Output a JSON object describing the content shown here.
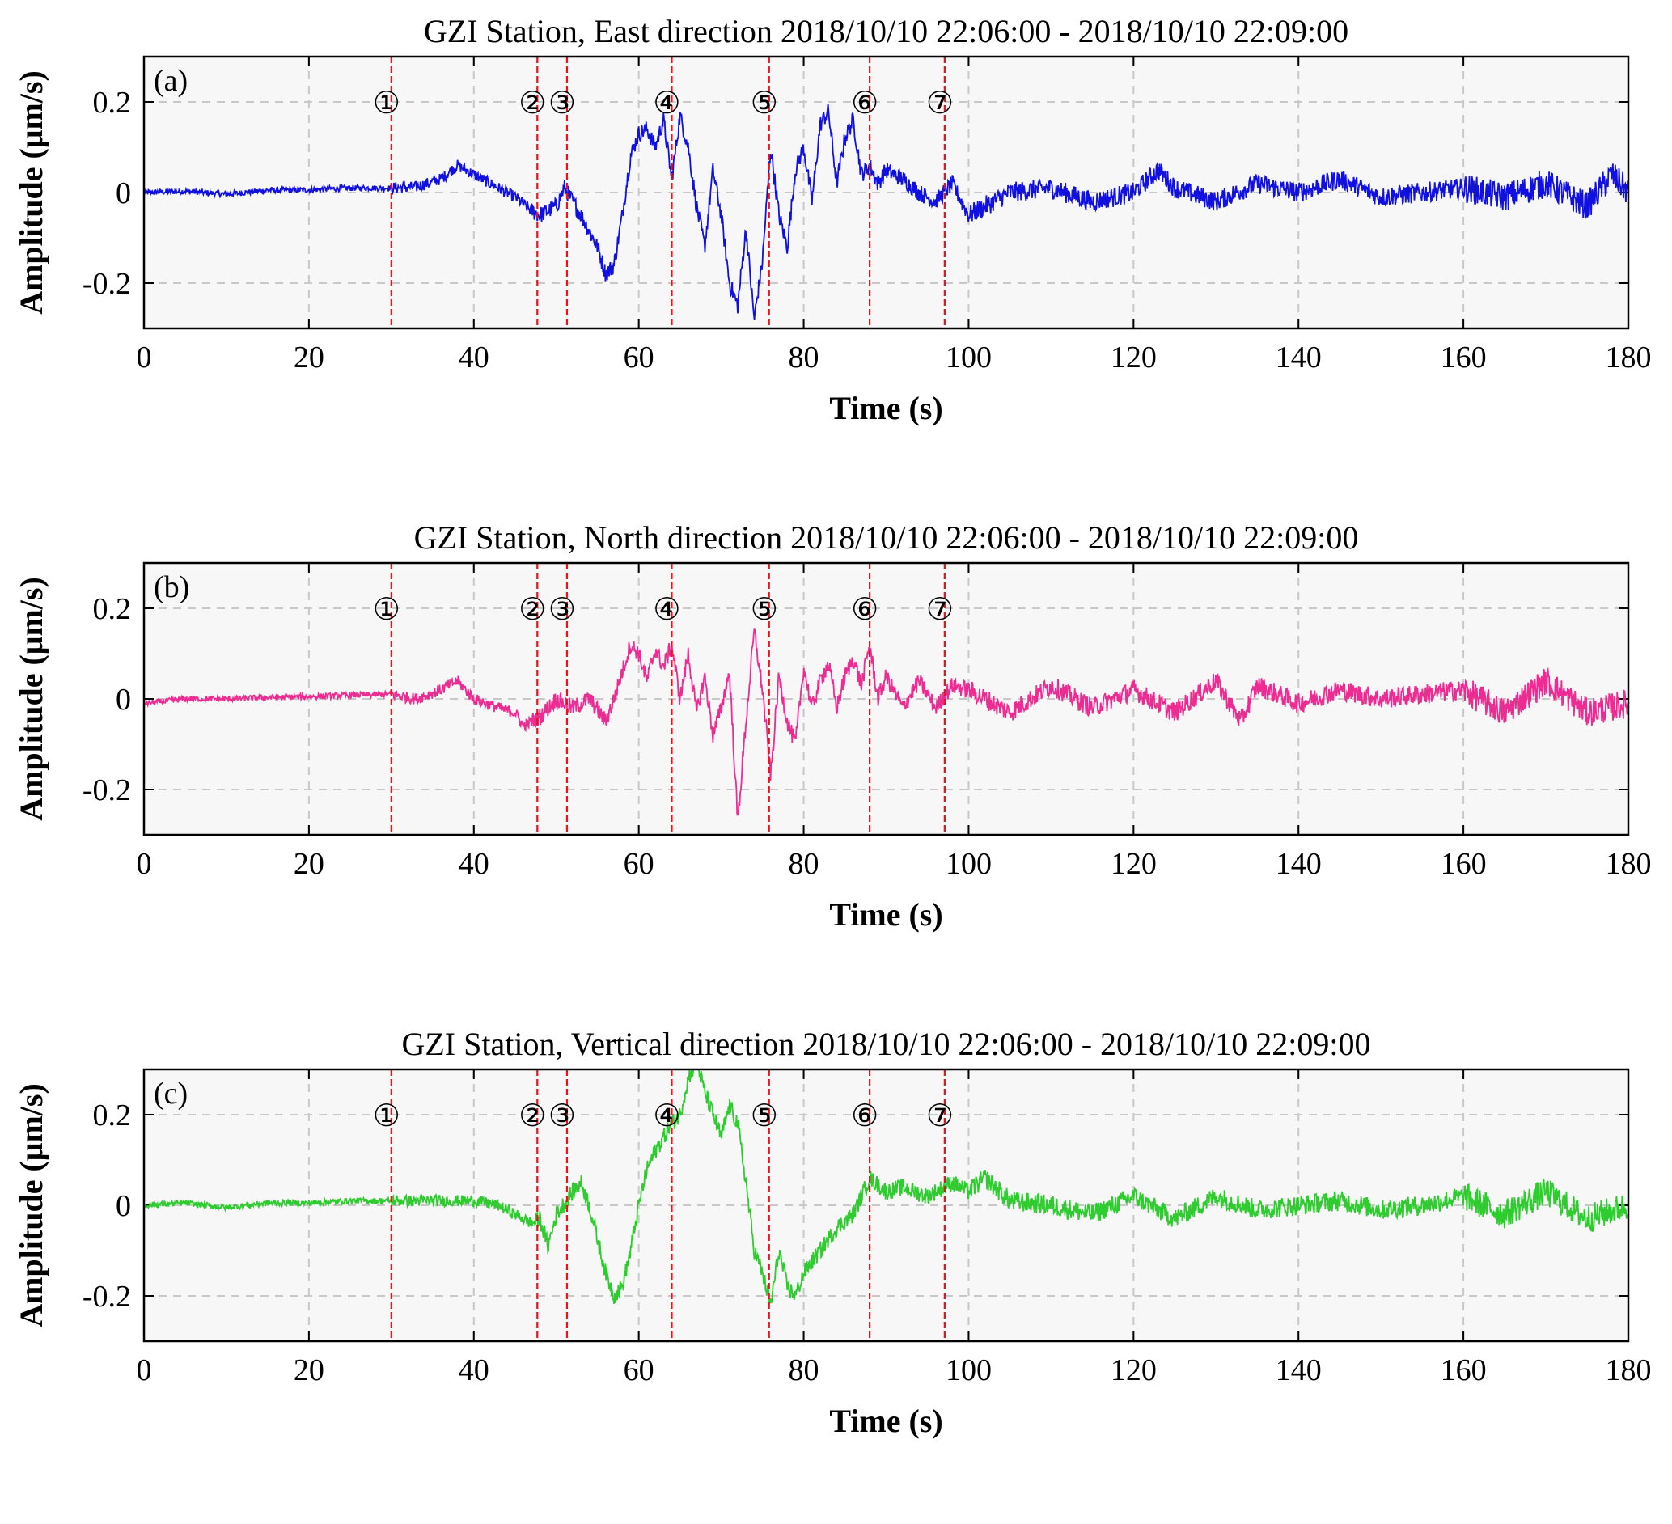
{
  "figure": {
    "colors": {
      "background": "#f7f7f7",
      "grid": "#c8c8c8",
      "event_line": "#e8131b"
    }
  },
  "chart_data": [
    {
      "type": "line",
      "panel_label": "(a)",
      "title": "GZI Station, East direction  2018/10/10 22:06:00 - 2018/10/10 22:09:00",
      "xlabel": "Time (s)",
      "ylabel": "Amplitude (μm/s)",
      "xlim": [
        0,
        180
      ],
      "ylim": [
        -0.3,
        0.3
      ],
      "x_ticks": [
        "0",
        "20",
        "40",
        "60",
        "80",
        "100",
        "120",
        "140",
        "160",
        "180"
      ],
      "y_ticks": [
        "-0.2",
        "0",
        "0.2"
      ],
      "grid": true,
      "color": "#1010e0",
      "series": [
        {
          "x": [
            0,
            5,
            10,
            15,
            20,
            25,
            30,
            33,
            36,
            38,
            40,
            43,
            45,
            47,
            48,
            50,
            51,
            53,
            55,
            56,
            57,
            58,
            59,
            60,
            61,
            62,
            63,
            64,
            65,
            66,
            67,
            68,
            69,
            70,
            71,
            72,
            73,
            74,
            75,
            76,
            77,
            78,
            79,
            80,
            81,
            82,
            83,
            84,
            85,
            86,
            87,
            88,
            89,
            90,
            92,
            94,
            96,
            98,
            100,
            105,
            110,
            115,
            120,
            123,
            125,
            130,
            135,
            140,
            145,
            150,
            155,
            160,
            165,
            170,
            175,
            178,
            180
          ],
          "y": [
            0,
            0.003,
            -0.004,
            0.005,
            0.006,
            0.01,
            0.01,
            0.012,
            0.03,
            0.06,
            0.04,
            0.01,
            -0.01,
            -0.04,
            -0.05,
            -0.03,
            0.01,
            -0.05,
            -0.12,
            -0.18,
            -0.16,
            -0.05,
            0.08,
            0.13,
            0.14,
            0.1,
            0.16,
            0.03,
            0.17,
            0.1,
            -0.03,
            -0.12,
            0.05,
            -0.05,
            -0.2,
            -0.25,
            -0.08,
            -0.28,
            -0.15,
            0.1,
            -0.05,
            -0.12,
            0.05,
            0.1,
            -0.02,
            0.15,
            0.18,
            0.02,
            0.12,
            0.16,
            0.04,
            0.06,
            0.02,
            0.05,
            0.03,
            0.0,
            -0.02,
            0.02,
            -0.05,
            0.0,
            0.01,
            -0.02,
            0.0,
            0.05,
            0.01,
            -0.02,
            0.02,
            0.0,
            0.03,
            -0.01,
            0.0,
            0.01,
            -0.01,
            0.02,
            -0.03,
            0.04,
            0.0
          ]
        }
      ],
      "event_lines": [
        30,
        47.7,
        51.3,
        64,
        75.8,
        88,
        97.1
      ],
      "event_labels": [
        "①",
        "②",
        "③",
        "④",
        "⑤",
        "⑥",
        "⑦"
      ]
    },
    {
      "type": "line",
      "panel_label": "(b)",
      "title": "GZI Station, North direction  2018/10/10 22:06:00 - 2018/10/10 22:09:00",
      "xlabel": "Time (s)",
      "ylabel": "Amplitude (μm/s)",
      "xlim": [
        0,
        180
      ],
      "ylim": [
        -0.3,
        0.3
      ],
      "x_ticks": [
        "0",
        "20",
        "40",
        "60",
        "80",
        "100",
        "120",
        "140",
        "160",
        "180"
      ],
      "y_ticks": [
        "-0.2",
        "0",
        "0.2"
      ],
      "grid": true,
      "color": "#ec2c92",
      "series": [
        {
          "x": [
            0,
            5,
            10,
            15,
            20,
            25,
            30,
            33,
            36,
            38,
            40,
            43,
            45,
            46,
            48,
            50,
            52,
            54,
            56,
            57,
            58,
            59,
            60,
            61,
            62,
            63,
            64,
            65,
            66,
            67,
            68,
            69,
            70,
            71,
            72,
            73,
            74,
            75,
            76,
            77,
            78,
            79,
            80,
            81,
            82,
            83,
            84,
            85,
            86,
            87,
            88,
            89,
            90,
            92,
            94,
            96,
            98,
            100,
            105,
            110,
            115,
            120,
            125,
            130,
            133,
            135,
            140,
            145,
            150,
            155,
            160,
            165,
            170,
            175,
            180
          ],
          "y": [
            -0.01,
            0.0,
            0.0,
            0.003,
            0.005,
            0.008,
            0.01,
            0.0,
            0.02,
            0.04,
            0.0,
            -0.02,
            -0.03,
            -0.06,
            -0.04,
            0.0,
            -0.02,
            0.0,
            -0.05,
            0.0,
            0.06,
            0.12,
            0.1,
            0.04,
            0.11,
            0.07,
            0.12,
            0.0,
            0.1,
            -0.03,
            0.05,
            -0.08,
            -0.02,
            0.06,
            -0.27,
            -0.05,
            0.15,
            0.02,
            -0.17,
            0.05,
            -0.05,
            -0.1,
            0.07,
            -0.02,
            0.04,
            0.08,
            -0.02,
            0.05,
            0.09,
            0.03,
            0.12,
            0.0,
            0.05,
            -0.02,
            0.04,
            -0.02,
            0.03,
            0.02,
            -0.03,
            0.03,
            -0.02,
            0.02,
            -0.03,
            0.04,
            -0.05,
            0.03,
            -0.01,
            0.02,
            0.0,
            0.01,
            0.02,
            -0.03,
            0.04,
            -0.03,
            -0.01
          ]
        }
      ],
      "event_lines": [
        30,
        47.7,
        51.3,
        64,
        75.8,
        88,
        97.1
      ],
      "event_labels": [
        "①",
        "②",
        "③",
        "④",
        "⑤",
        "⑥",
        "⑦"
      ]
    },
    {
      "type": "line",
      "panel_label": "(c)",
      "title": "GZI Station, Vertical direction  2018/10/10 22:06:00 - 2018/10/10 22:09:00",
      "xlabel": "Time (s)",
      "ylabel": "Amplitude (μm/s)",
      "xlim": [
        0,
        180
      ],
      "ylim": [
        -0.3,
        0.3
      ],
      "x_ticks": [
        "0",
        "20",
        "40",
        "60",
        "80",
        "100",
        "120",
        "140",
        "160",
        "180"
      ],
      "y_ticks": [
        "-0.2",
        "0",
        "0.2"
      ],
      "grid": true,
      "color": "#2ecc2e",
      "series": [
        {
          "x": [
            0,
            5,
            10,
            15,
            20,
            25,
            30,
            35,
            40,
            43,
            45,
            47,
            48,
            49,
            50,
            52,
            53,
            54,
            56,
            57,
            58,
            59,
            60,
            61,
            62,
            63,
            64,
            65,
            66,
            67,
            68,
            69,
            70,
            71,
            72,
            73,
            74,
            75,
            76,
            77,
            78,
            79,
            80,
            82,
            84,
            86,
            88,
            90,
            92,
            95,
            98,
            100,
            102,
            105,
            110,
            115,
            120,
            125,
            130,
            135,
            140,
            145,
            150,
            155,
            160,
            165,
            170,
            175,
            180
          ],
          "y": [
            0.0,
            0.005,
            -0.005,
            0.005,
            0.005,
            0.01,
            0.01,
            0.01,
            0.01,
            0.0,
            -0.02,
            -0.04,
            -0.03,
            -0.09,
            -0.02,
            0.03,
            0.05,
            0.0,
            -0.15,
            -0.2,
            -0.18,
            -0.1,
            0.0,
            0.08,
            0.12,
            0.15,
            0.18,
            0.2,
            0.28,
            0.32,
            0.25,
            0.2,
            0.15,
            0.22,
            0.18,
            0.05,
            -0.1,
            -0.15,
            -0.22,
            -0.1,
            -0.18,
            -0.2,
            -0.15,
            -0.1,
            -0.05,
            -0.02,
            0.06,
            0.03,
            0.04,
            0.02,
            0.05,
            0.03,
            0.06,
            0.01,
            0.0,
            -0.02,
            0.02,
            -0.03,
            0.02,
            -0.01,
            0.0,
            0.01,
            -0.01,
            0.0,
            0.02,
            -0.02,
            0.03,
            -0.03,
            0.0
          ]
        }
      ],
      "event_lines": [
        30,
        47.7,
        51.3,
        64,
        75.8,
        88,
        97.1
      ],
      "event_labels": [
        "①",
        "②",
        "③",
        "④",
        "⑤",
        "⑥",
        "⑦"
      ]
    }
  ]
}
